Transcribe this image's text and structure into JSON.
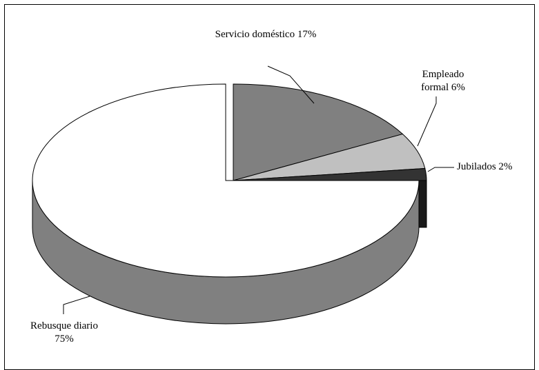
{
  "chart_data": {
    "type": "pie",
    "categories": [
      "Servicio doméstico",
      "Empleado formal",
      "Jubilados",
      "Rebusque diario"
    ],
    "values": [
      17,
      6,
      2,
      75
    ],
    "value_labels": [
      "17%",
      "6%",
      "2%",
      "75%"
    ],
    "colors": [
      "#808080",
      "#c0c0c0",
      "#333333",
      "#ffffff"
    ],
    "side_colors": [
      "#606060",
      "#a0a0a0",
      "#1a1a1a",
      "#808080"
    ]
  }
}
